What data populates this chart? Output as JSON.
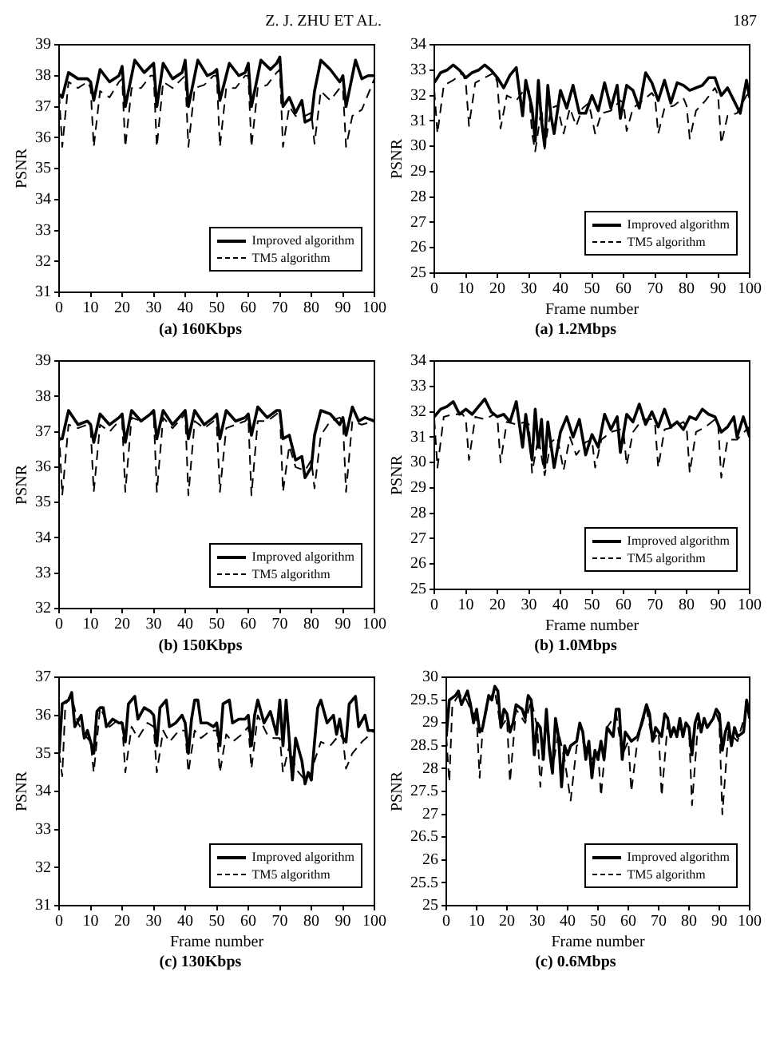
{
  "chart_data": [
    {
      "type": "line",
      "title": "(a) 160Kbps",
      "ylabel": "PSNR",
      "annotations": [
        "Z. J. ZHU ET AL."
      ],
      "xlim": [
        0,
        100
      ],
      "xticks": [
        0,
        10,
        20,
        30,
        40,
        50,
        60,
        70,
        80,
        90,
        100
      ],
      "ylim": [
        31,
        39
      ],
      "yticks": [
        31,
        32,
        33,
        34,
        35,
        36,
        37,
        38,
        39
      ],
      "legend": "bottom right",
      "series": [
        {
          "name": "Improved algorithm",
          "color": "#000000",
          "line_style": "solid",
          "x": [
            0,
            1,
            3,
            6,
            9,
            10,
            11,
            13,
            16,
            19,
            20,
            21,
            24,
            27,
            29,
            30,
            31,
            33,
            36,
            39,
            40,
            41,
            44,
            47,
            49,
            50,
            51,
            54,
            57,
            59,
            60,
            61,
            64,
            67,
            69,
            70,
            71,
            73,
            75,
            77,
            78,
            80,
            81,
            83,
            86,
            89,
            90,
            91,
            94,
            96,
            98,
            100
          ],
          "values": [
            37.4,
            37.3,
            38.1,
            37.9,
            37.9,
            37.8,
            37.2,
            38.2,
            37.8,
            38.0,
            38.3,
            37.0,
            38.5,
            38.1,
            38.3,
            38.4,
            37.0,
            38.4,
            37.9,
            38.1,
            38.5,
            37.0,
            38.5,
            38.0,
            38.1,
            38.2,
            37.2,
            38.4,
            38.0,
            38.1,
            38.4,
            37.0,
            38.5,
            38.2,
            38.4,
            38.6,
            37.0,
            37.3,
            36.8,
            37.2,
            36.5,
            36.6,
            37.5,
            38.5,
            38.2,
            37.8,
            38.0,
            37.0,
            38.5,
            37.9,
            38.0,
            38.0
          ]
        },
        {
          "name": "TM5 algorithm",
          "color": "#000000",
          "line_style": "dashed",
          "x": [
            0,
            1,
            3,
            6,
            9,
            10,
            11,
            13,
            16,
            19,
            20,
            21,
            23,
            26,
            29,
            30,
            31,
            33,
            36,
            39,
            40,
            41,
            43,
            46,
            49,
            50,
            51,
            53,
            56,
            59,
            60,
            61,
            63,
            66,
            69,
            70,
            71,
            73,
            75,
            78,
            80,
            81,
            83,
            86,
            89,
            90,
            91,
            93,
            96,
            100
          ],
          "values": [
            37.4,
            35.7,
            37.8,
            37.6,
            37.8,
            37.6,
            35.7,
            37.5,
            37.3,
            37.8,
            37.9,
            35.7,
            37.6,
            37.6,
            38.0,
            38.0,
            35.7,
            37.8,
            37.6,
            37.9,
            38.0,
            35.7,
            37.6,
            37.7,
            38.0,
            38.0,
            35.7,
            37.6,
            37.6,
            38.0,
            38.0,
            35.7,
            37.6,
            37.7,
            38.1,
            38.2,
            35.7,
            37.0,
            36.7,
            36.7,
            36.8,
            35.8,
            37.5,
            37.2,
            37.6,
            37.6,
            35.7,
            36.7,
            36.9,
            37.9
          ]
        }
      ]
    },
    {
      "type": "line",
      "title": "(a) 1.2Mbps",
      "xlabel": "Frame number",
      "ylabel": "PSNR",
      "annotations": [
        "187"
      ],
      "xlim": [
        0,
        100
      ],
      "xticks": [
        0,
        10,
        20,
        30,
        40,
        50,
        60,
        70,
        80,
        90,
        100
      ],
      "ylim": [
        25,
        34
      ],
      "yticks": [
        25,
        26,
        27,
        28,
        29,
        30,
        31,
        32,
        33,
        34
      ],
      "legend": "bottom right",
      "series": [
        {
          "name": "Improved algorithm",
          "color": "#000000",
          "line_style": "solid",
          "x": [
            0,
            2,
            4,
            6,
            8,
            10,
            12,
            14,
            16,
            18,
            20,
            22,
            24,
            26,
            28,
            29,
            31,
            32,
            33,
            34,
            35,
            36,
            37,
            38,
            40,
            42,
            44,
            46,
            48,
            50,
            52,
            54,
            56,
            58,
            59,
            61,
            63,
            65,
            67,
            69,
            71,
            73,
            75,
            77,
            79,
            81,
            83,
            85,
            87,
            89,
            91,
            93,
            95,
            97,
            99,
            100
          ],
          "values": [
            32.5,
            32.9,
            33.0,
            33.2,
            33.0,
            32.7,
            32.9,
            33.0,
            33.2,
            33.0,
            32.7,
            32.3,
            32.8,
            33.1,
            31.2,
            32.6,
            31.5,
            30.2,
            32.6,
            31.0,
            30.0,
            32.4,
            31.2,
            30.5,
            32.2,
            31.5,
            32.4,
            31.3,
            31.3,
            32.0,
            31.4,
            32.5,
            31.5,
            32.4,
            31.1,
            32.4,
            32.2,
            31.5,
            32.9,
            32.5,
            31.8,
            32.6,
            31.7,
            32.5,
            32.4,
            32.2,
            32.3,
            32.4,
            32.7,
            32.7,
            32.0,
            32.3,
            31.8,
            31.3,
            32.6,
            31.9
          ]
        },
        {
          "name": "TM5 algorithm",
          "color": "#000000",
          "line_style": "dashed",
          "x": [
            0,
            1,
            3,
            6,
            9,
            10,
            11,
            13,
            16,
            19,
            20,
            21,
            23,
            26,
            29,
            30,
            31,
            32,
            34,
            35,
            37,
            39,
            41,
            43,
            45,
            47,
            49,
            51,
            53,
            56,
            59,
            60,
            61,
            63,
            66,
            69,
            70,
            71,
            73,
            76,
            79,
            80,
            81,
            83,
            86,
            89,
            90,
            91,
            93,
            96,
            99,
            100
          ],
          "values": [
            32.2,
            30.5,
            32.4,
            32.6,
            32.9,
            32.5,
            30.8,
            32.5,
            32.7,
            32.9,
            32.5,
            30.7,
            32.0,
            31.8,
            32.3,
            32.2,
            30.5,
            29.8,
            31.5,
            29.9,
            31.5,
            31.6,
            30.5,
            31.5,
            30.8,
            31.5,
            31.7,
            30.5,
            31.3,
            31.4,
            31.8,
            31.7,
            30.6,
            31.5,
            31.8,
            32.1,
            31.9,
            30.5,
            31.5,
            31.6,
            31.9,
            31.6,
            30.3,
            31.4,
            31.8,
            32.3,
            32.0,
            30.1,
            31.2,
            31.3,
            32.0,
            32.1
          ]
        }
      ]
    },
    {
      "type": "line",
      "title": "(b) 150Kbps",
      "ylabel": "PSNR",
      "xlim": [
        0,
        100
      ],
      "xticks": [
        0,
        10,
        20,
        30,
        40,
        50,
        60,
        70,
        80,
        90,
        100
      ],
      "ylim": [
        32,
        39
      ],
      "yticks": [
        32,
        33,
        34,
        35,
        36,
        37,
        38,
        39
      ],
      "legend": "bottom right",
      "series": [
        {
          "name": "Improved algorithm",
          "color": "#000000",
          "line_style": "solid",
          "x": [
            0,
            1,
            3,
            6,
            9,
            10,
            11,
            13,
            16,
            19,
            20,
            21,
            23,
            26,
            29,
            30,
            31,
            33,
            36,
            39,
            40,
            41,
            43,
            46,
            49,
            50,
            51,
            53,
            56,
            59,
            60,
            61,
            63,
            66,
            69,
            70,
            71,
            73,
            75,
            77,
            78,
            80,
            81,
            83,
            86,
            89,
            90,
            91,
            93,
            95,
            97,
            100
          ],
          "values": [
            36.8,
            36.8,
            37.6,
            37.2,
            37.3,
            37.2,
            36.7,
            37.5,
            37.2,
            37.4,
            37.5,
            36.7,
            37.6,
            37.3,
            37.5,
            37.6,
            36.8,
            37.6,
            37.2,
            37.5,
            37.6,
            36.8,
            37.6,
            37.2,
            37.4,
            37.5,
            36.8,
            37.6,
            37.3,
            37.4,
            37.5,
            36.9,
            37.7,
            37.4,
            37.6,
            37.6,
            36.8,
            36.9,
            36.2,
            36.3,
            35.7,
            36.0,
            36.9,
            37.6,
            37.5,
            37.2,
            37.4,
            36.9,
            37.7,
            37.3,
            37.4,
            37.3
          ]
        },
        {
          "name": "TM5 algorithm",
          "color": "#000000",
          "line_style": "dashed",
          "x": [
            0,
            1,
            3,
            6,
            9,
            10,
            11,
            13,
            16,
            19,
            20,
            21,
            23,
            26,
            29,
            30,
            31,
            33,
            36,
            39,
            40,
            41,
            43,
            46,
            49,
            50,
            51,
            53,
            56,
            59,
            60,
            61,
            63,
            66,
            69,
            70,
            71,
            73,
            75,
            78,
            80,
            81,
            83,
            86,
            89,
            90,
            91,
            93,
            96,
            100
          ],
          "values": [
            37.0,
            35.2,
            37.2,
            37.1,
            37.2,
            37.1,
            35.3,
            37.2,
            37.0,
            37.3,
            37.3,
            35.3,
            37.4,
            37.3,
            37.5,
            37.5,
            35.3,
            37.4,
            37.1,
            37.4,
            37.5,
            35.2,
            37.3,
            37.1,
            37.3,
            37.2,
            35.3,
            37.1,
            37.2,
            37.3,
            37.4,
            35.2,
            37.3,
            37.3,
            37.5,
            37.6,
            35.3,
            36.6,
            36.0,
            35.9,
            36.2,
            35.4,
            36.9,
            37.3,
            37.4,
            37.3,
            35.3,
            37.3,
            37.2,
            37.3
          ]
        }
      ]
    },
    {
      "type": "line",
      "title": "(b) 1.0Mbps",
      "xlabel": "Frame number",
      "ylabel": "PSNR",
      "xlim": [
        0,
        100
      ],
      "xticks": [
        0,
        10,
        20,
        30,
        40,
        50,
        60,
        70,
        80,
        90,
        100
      ],
      "ylim": [
        25,
        34
      ],
      "yticks": [
        25,
        26,
        27,
        28,
        29,
        30,
        31,
        32,
        33,
        34
      ],
      "legend": "bottom right",
      "series": [
        {
          "name": "Improved algorithm",
          "color": "#000000",
          "line_style": "solid",
          "x": [
            0,
            2,
            4,
            6,
            8,
            10,
            12,
            14,
            16,
            18,
            20,
            22,
            24,
            26,
            28,
            29,
            31,
            32,
            33,
            34,
            35,
            36,
            38,
            40,
            42,
            44,
            46,
            48,
            50,
            52,
            54,
            56,
            58,
            59,
            61,
            63,
            65,
            67,
            69,
            71,
            73,
            75,
            77,
            79,
            81,
            83,
            85,
            87,
            89,
            91,
            93,
            95,
            96,
            98,
            100
          ],
          "values": [
            31.8,
            32.1,
            32.2,
            32.4,
            31.9,
            32.1,
            31.9,
            32.2,
            32.5,
            32.0,
            31.8,
            31.9,
            31.6,
            32.4,
            30.6,
            31.9,
            30.1,
            32.1,
            30.6,
            31.7,
            29.8,
            31.6,
            29.8,
            31.2,
            31.8,
            31.0,
            31.7,
            30.3,
            31.1,
            30.6,
            31.9,
            31.3,
            31.8,
            30.4,
            31.9,
            31.6,
            32.3,
            31.5,
            32.0,
            31.4,
            32.1,
            31.4,
            31.6,
            31.3,
            31.8,
            31.7,
            32.1,
            31.9,
            31.8,
            31.2,
            31.4,
            31.8,
            31.0,
            31.8,
            31.0
          ]
        },
        {
          "name": "TM5 algorithm",
          "color": "#000000",
          "line_style": "dashed",
          "x": [
            0,
            1,
            3,
            6,
            9,
            10,
            11,
            13,
            16,
            19,
            20,
            21,
            23,
            26,
            29,
            30,
            31,
            33,
            35,
            37,
            39,
            41,
            43,
            45,
            48,
            50,
            51,
            53,
            56,
            59,
            60,
            61,
            63,
            66,
            69,
            70,
            71,
            73,
            76,
            79,
            80,
            81,
            83,
            86,
            89,
            90,
            91,
            93,
            96,
            99,
            100
          ],
          "values": [
            31.7,
            29.8,
            31.8,
            31.9,
            31.9,
            31.7,
            30.1,
            31.8,
            31.7,
            31.9,
            31.8,
            30.0,
            31.6,
            31.5,
            31.6,
            31.5,
            29.6,
            31.0,
            29.5,
            30.8,
            31.0,
            29.7,
            31.0,
            30.3,
            30.8,
            30.9,
            29.8,
            30.9,
            31.2,
            31.3,
            31.2,
            29.9,
            31.2,
            31.7,
            31.7,
            31.5,
            29.8,
            31.3,
            31.4,
            31.6,
            31.4,
            29.6,
            31.2,
            31.4,
            31.7,
            31.5,
            29.4,
            30.9,
            30.9,
            31.3,
            31.4
          ]
        }
      ]
    },
    {
      "type": "line",
      "title": "(c) 130Kbps",
      "xlabel": "Frame number",
      "ylabel": "PSNR",
      "xlim": [
        0,
        100
      ],
      "xticks": [
        0,
        10,
        20,
        30,
        40,
        50,
        60,
        70,
        80,
        90,
        100
      ],
      "ylim": [
        31,
        37
      ],
      "yticks": [
        31,
        32,
        33,
        34,
        35,
        36,
        37
      ],
      "legend": "bottom right",
      "series": [
        {
          "name": "Improved algorithm",
          "color": "#000000",
          "line_style": "solid",
          "x": [
            0,
            1,
            3,
            4,
            5,
            7,
            8,
            9,
            10,
            11,
            12,
            13,
            14,
            15,
            17,
            19,
            20,
            21,
            22,
            24,
            25,
            27,
            29,
            30,
            31,
            32,
            34,
            35,
            37,
            39,
            40,
            41,
            42,
            43,
            44,
            45,
            47,
            49,
            50,
            51,
            52,
            54,
            55,
            57,
            59,
            60,
            61,
            62,
            63,
            65,
            67,
            69,
            70,
            71,
            72,
            74,
            75,
            77,
            78,
            79,
            80,
            81,
            82,
            83,
            85,
            87,
            88,
            89,
            90,
            91,
            92,
            94,
            95,
            97,
            98,
            100
          ],
          "values": [
            35.0,
            36.3,
            36.4,
            36.6,
            35.7,
            36.0,
            35.4,
            35.6,
            35.3,
            35.0,
            36.1,
            36.2,
            36.2,
            35.7,
            35.9,
            35.8,
            35.8,
            35.3,
            36.3,
            36.5,
            35.9,
            36.2,
            36.1,
            36.0,
            35.2,
            36.2,
            36.4,
            35.7,
            35.8,
            36.0,
            35.8,
            35.0,
            35.9,
            36.4,
            36.4,
            35.8,
            35.8,
            35.7,
            35.8,
            35.2,
            36.3,
            36.4,
            35.8,
            35.9,
            35.9,
            36.0,
            35.2,
            36.0,
            36.4,
            35.8,
            36.1,
            35.5,
            36.4,
            35.2,
            36.4,
            34.3,
            35.4,
            34.8,
            34.2,
            34.5,
            34.3,
            35.3,
            36.2,
            36.4,
            35.8,
            36.0,
            35.5,
            35.9,
            35.4,
            35.3,
            36.3,
            36.5,
            35.7,
            36.0,
            35.6,
            35.6
          ]
        },
        {
          "name": "TM5 algorithm",
          "color": "#000000",
          "line_style": "dashed",
          "x": [
            0,
            1,
            2,
            4,
            6,
            8,
            10,
            11,
            13,
            16,
            19,
            20,
            21,
            23,
            25,
            28,
            30,
            31,
            33,
            35,
            38,
            40,
            41,
            43,
            45,
            48,
            50,
            51,
            53,
            55,
            58,
            60,
            61,
            63,
            66,
            68,
            70,
            71,
            73,
            75,
            78,
            80,
            81,
            83,
            86,
            89,
            90,
            91,
            93,
            96,
            100
          ],
          "values": [
            35.0,
            34.4,
            36.3,
            36.5,
            35.8,
            35.5,
            35.3,
            34.5,
            36.2,
            35.7,
            35.9,
            35.8,
            34.5,
            35.7,
            35.4,
            35.8,
            35.7,
            34.5,
            35.6,
            35.3,
            35.6,
            35.6,
            34.5,
            35.6,
            35.4,
            35.6,
            35.6,
            34.5,
            35.5,
            35.3,
            35.5,
            35.7,
            34.6,
            36.0,
            35.5,
            35.4,
            35.4,
            34.5,
            35.2,
            34.6,
            34.3,
            34.5,
            34.8,
            35.3,
            35.2,
            35.5,
            35.4,
            34.6,
            35.0,
            35.3,
            35.6
          ]
        }
      ]
    },
    {
      "type": "line",
      "title": "(c) 0.6Mbps",
      "xlabel": "Frame number",
      "ylabel": "PSNR",
      "xlim": [
        0,
        100
      ],
      "xticks": [
        0,
        10,
        20,
        30,
        40,
        50,
        60,
        70,
        80,
        90,
        100
      ],
      "ylim": [
        25,
        30
      ],
      "yticks": [
        25,
        25.5,
        26,
        26.5,
        27,
        27.5,
        28,
        28.5,
        29,
        29.5,
        30
      ],
      "legend": "bottom right",
      "series": [
        {
          "name": "Improved algorithm",
          "color": "#000000",
          "line_style": "solid",
          "x": [
            0,
            1,
            3,
            4,
            5,
            7,
            8,
            9,
            10,
            11,
            12,
            14,
            15,
            16,
            17,
            18,
            19,
            20,
            21,
            22,
            23,
            25,
            26,
            27,
            28,
            29,
            30,
            31,
            32,
            33,
            34,
            35,
            36,
            37,
            38,
            39,
            40,
            41,
            43,
            44,
            45,
            46,
            47,
            48,
            49,
            50,
            51,
            52,
            53,
            55,
            56,
            57,
            58,
            59,
            60,
            61,
            63,
            64,
            66,
            67,
            68,
            69,
            70,
            71,
            72,
            73,
            74,
            75,
            76,
            77,
            78,
            79,
            80,
            81,
            82,
            83,
            84,
            85,
            86,
            88,
            89,
            90,
            91,
            92,
            93,
            94,
            95,
            96,
            98,
            99,
            100
          ],
          "values": [
            28.7,
            29.5,
            29.6,
            29.7,
            29.4,
            29.7,
            29.4,
            29.0,
            29.3,
            28.8,
            28.9,
            29.6,
            29.5,
            29.8,
            29.7,
            28.9,
            29.3,
            29.2,
            28.8,
            29.0,
            29.4,
            29.3,
            29.1,
            29.6,
            29.5,
            28.3,
            29.0,
            28.9,
            28.2,
            29.3,
            28.4,
            27.9,
            29.1,
            28.7,
            27.6,
            28.5,
            28.3,
            28.5,
            28.6,
            29.0,
            28.8,
            28.2,
            28.6,
            27.8,
            28.4,
            28.2,
            28.6,
            28.2,
            28.9,
            28.7,
            29.3,
            29.3,
            28.2,
            28.8,
            28.7,
            28.6,
            28.7,
            28.9,
            29.4,
            29.2,
            28.6,
            28.9,
            28.8,
            28.7,
            29.2,
            29.1,
            28.7,
            28.9,
            28.7,
            29.1,
            28.7,
            29.0,
            28.9,
            28.3,
            29.0,
            29.2,
            28.8,
            29.1,
            28.9,
            29.1,
            29.3,
            29.2,
            28.4,
            28.8,
            29.0,
            28.5,
            28.9,
            28.7,
            28.8,
            29.5,
            29.1
          ]
        },
        {
          "name": "TM5 algorithm",
          "color": "#000000",
          "line_style": "dashed",
          "x": [
            0,
            1,
            2,
            4,
            6,
            8,
            10,
            11,
            12,
            14,
            16,
            18,
            20,
            21,
            23,
            26,
            28,
            30,
            31,
            33,
            35,
            37,
            39,
            41,
            43,
            45,
            48,
            50,
            51,
            53,
            56,
            58,
            60,
            61,
            63,
            66,
            68,
            70,
            71,
            73,
            76,
            79,
            80,
            81,
            83,
            86,
            89,
            90,
            91,
            93,
            96,
            99,
            100
          ],
          "values": [
            28.7,
            27.7,
            29.4,
            29.6,
            29.6,
            29.3,
            29.1,
            27.8,
            28.9,
            29.5,
            29.7,
            28.9,
            29.1,
            27.7,
            29.3,
            29.0,
            29.5,
            28.9,
            27.6,
            29.2,
            28.0,
            28.8,
            28.2,
            27.3,
            28.5,
            28.6,
            28.2,
            28.4,
            27.4,
            28.9,
            29.2,
            28.3,
            28.6,
            27.5,
            28.6,
            29.3,
            28.6,
            28.8,
            27.4,
            29.0,
            28.8,
            29.0,
            28.9,
            27.2,
            29.0,
            28.9,
            29.2,
            29.0,
            27.0,
            28.8,
            28.6,
            29.3,
            29.1
          ]
        }
      ]
    }
  ]
}
